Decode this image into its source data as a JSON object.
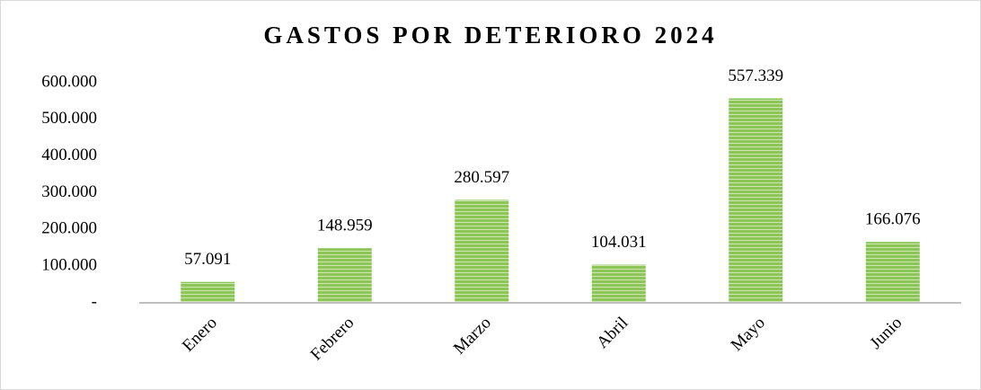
{
  "chart_data": {
    "type": "bar",
    "title": "GASTOS POR DETERIORO 2024",
    "categories": [
      "Enero",
      "Febrero",
      "Marzo",
      "Abril",
      "Mayo",
      "Junio"
    ],
    "values": [
      57091,
      148959,
      280597,
      104031,
      557339,
      166076
    ],
    "value_labels": [
      "57.091",
      "148.959",
      "280.597",
      "104.031",
      "557.339",
      "166.076"
    ],
    "color": "#8cc656",
    "ylim": [
      0,
      600000
    ],
    "yticks": [
      {
        "value": 0,
        "label": "-"
      },
      {
        "value": 100000,
        "label": "100.000"
      },
      {
        "value": 200000,
        "label": "200.000"
      },
      {
        "value": 300000,
        "label": "300.000"
      },
      {
        "value": 400000,
        "label": "400.000"
      },
      {
        "value": 500000,
        "label": "500.000"
      },
      {
        "value": 600000,
        "label": "600.000"
      }
    ]
  }
}
